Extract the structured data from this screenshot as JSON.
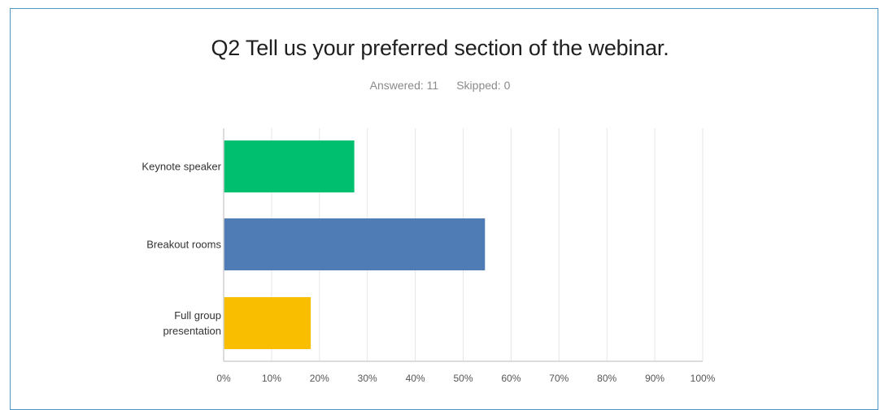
{
  "header": {
    "title": "Q2 Tell us your preferred section of the webinar.",
    "answered_label": "Answered: 11",
    "skipped_label": "Skipped: 0"
  },
  "chart_data": {
    "type": "bar",
    "orientation": "horizontal",
    "categories": [
      {
        "lines": [
          "Keynote speaker"
        ]
      },
      {
        "lines": [
          "Breakout rooms"
        ]
      },
      {
        "lines": [
          "Full group",
          "presentation"
        ]
      }
    ],
    "values": [
      27.27,
      54.55,
      18.18
    ],
    "colors": [
      "#00bf6f",
      "#507cb6",
      "#f9be00"
    ],
    "xticks": [
      "0%",
      "10%",
      "20%",
      "30%",
      "40%",
      "50%",
      "60%",
      "70%",
      "80%",
      "90%",
      "100%"
    ],
    "xlim": [
      0,
      100
    ],
    "grid": true
  }
}
